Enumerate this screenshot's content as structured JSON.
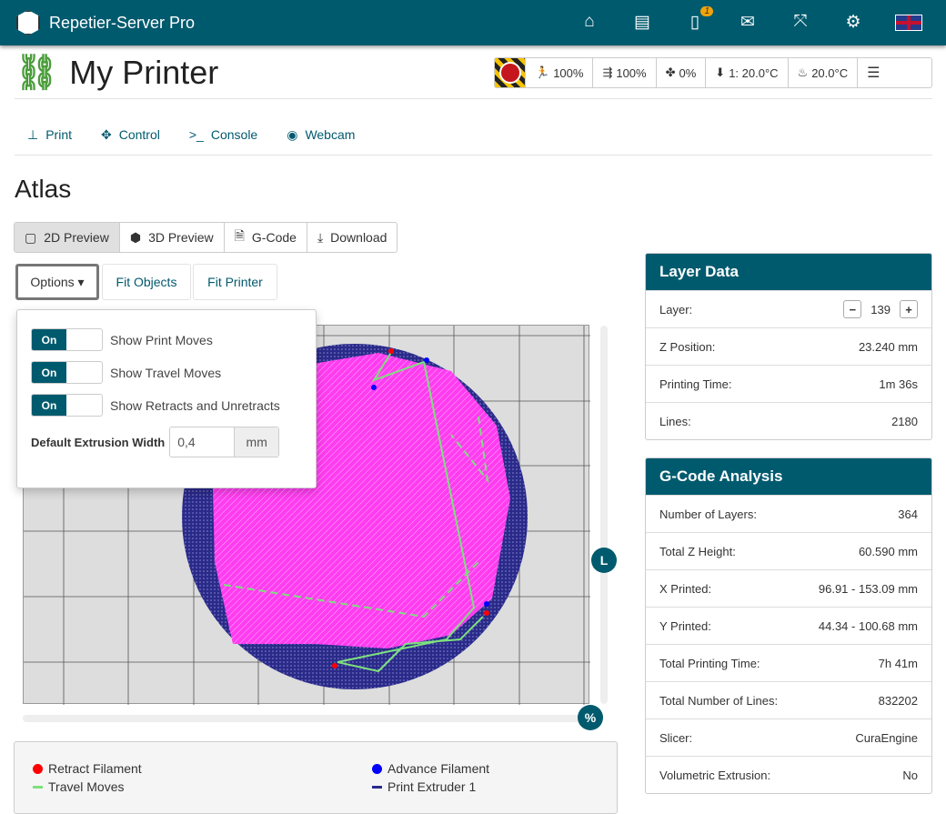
{
  "app": {
    "title": "Repetier-Server Pro",
    "notification_count": "1"
  },
  "topnav": {
    "icons": [
      "home-icon",
      "archive-icon",
      "tablet-icon",
      "mail-icon",
      "fullscreen-icon",
      "gear-icon",
      "uk-flag-icon"
    ]
  },
  "printer": {
    "name": "My Printer"
  },
  "status": {
    "speed": "100%",
    "flow": "100%",
    "fan": "0%",
    "extruder": "1: 20.0°C",
    "bed": "20.0°C"
  },
  "tabs": [
    {
      "label": "Print"
    },
    {
      "label": "Control"
    },
    {
      "label": "Console"
    },
    {
      "label": "Webcam"
    }
  ],
  "model": {
    "name": "Atlas"
  },
  "view_tabs": [
    {
      "label": "2D Preview",
      "active": true
    },
    {
      "label": "3D Preview"
    },
    {
      "label": "G-Code"
    },
    {
      "label": "Download"
    }
  ],
  "toolbar": {
    "options": "Options",
    "fit_objects": "Fit Objects",
    "fit_printer": "Fit Printer"
  },
  "options": {
    "toggle_on": "On",
    "toggles": [
      {
        "label": "Show Print Moves"
      },
      {
        "label": "Show Travel Moves"
      },
      {
        "label": "Show Retracts and Unretracts"
      }
    ],
    "extrusion_label": "Default Extrusion Width",
    "extrusion_value": "0,4",
    "extrusion_unit": "mm"
  },
  "sliders": {
    "layer_knob": "L",
    "percent_knob": "%"
  },
  "legend": {
    "retract": "Retract Filament",
    "advance": "Advance Filament",
    "travel": "Travel Moves",
    "extruder": "Print Extruder 1"
  },
  "colors": {
    "accent": "#005a6e",
    "retract": "#ff0000",
    "advance": "#0000ff",
    "travel": "#7ee07e",
    "extruder": "#2a2a8a",
    "fill": "#ff3cf0"
  },
  "layer_data": {
    "title": "Layer Data",
    "layer_label": "Layer:",
    "layer": "139",
    "z_label": "Z Position:",
    "z": "23.240 mm",
    "time_label": "Printing Time:",
    "time": "1m 36s",
    "lines_label": "Lines:",
    "lines": "2180"
  },
  "analysis": {
    "title": "G-Code Analysis",
    "rows": [
      {
        "label": "Number of Layers:",
        "value": "364"
      },
      {
        "label": "Total Z Height:",
        "value": "60.590 mm"
      },
      {
        "label": "X Printed:",
        "value": "96.91 - 153.09 mm"
      },
      {
        "label": "Y Printed:",
        "value": "44.34 - 100.68 mm"
      },
      {
        "label": "Total Printing Time:",
        "value": "7h 41m"
      },
      {
        "label": "Total Number of Lines:",
        "value": "832202"
      },
      {
        "label": "Slicer:",
        "value": "CuraEngine"
      },
      {
        "label": "Volumetric Extrusion:",
        "value": "No"
      }
    ]
  }
}
